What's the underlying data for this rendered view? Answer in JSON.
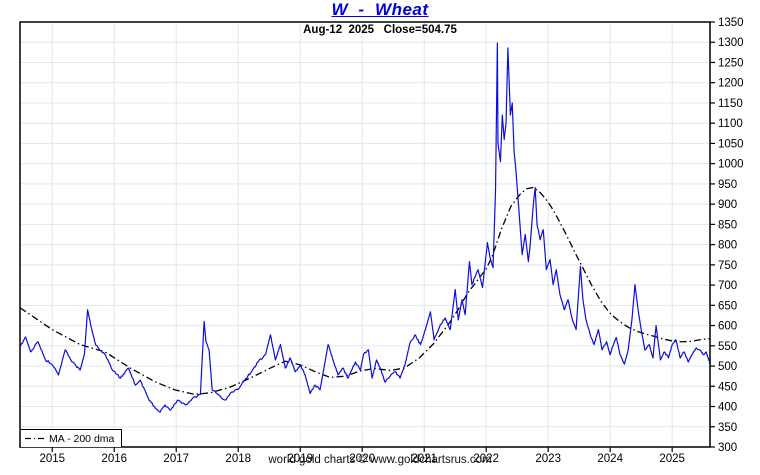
{
  "header": {
    "title": "W  -  Wheat",
    "subtitle": "Aug-12  2025   Close=504.75"
  },
  "legend": {
    "ma_label": "MA - 200 dma"
  },
  "footer": {
    "credit": "world gold charts © www.goldchartsrus.com"
  },
  "chart_data": {
    "type": "line",
    "title": "W - Wheat",
    "as_of_date": "Aug-12 2025",
    "close": 504.75,
    "xlabel": "",
    "ylabel": "",
    "x_range": [
      2014.48,
      2025.61
    ],
    "y_range": [
      300,
      1350
    ],
    "x_ticks": [
      2015,
      2016,
      2017,
      2018,
      2019,
      2020,
      2021,
      2022,
      2023,
      2024,
      2025
    ],
    "y_ticks": [
      300,
      350,
      400,
      450,
      500,
      550,
      600,
      650,
      700,
      750,
      800,
      850,
      900,
      950,
      1000,
      1050,
      1100,
      1150,
      1200,
      1250,
      1300,
      1350
    ],
    "grid": true,
    "legend_position": "bottom-left",
    "colors": {
      "price": "#0d0de0",
      "ma": "#000000",
      "grid": "#dde8f4",
      "frame": "#000000",
      "title": "#0000e0"
    },
    "series": [
      {
        "name": "W - Wheat price",
        "style": "solid",
        "color_key": "price",
        "points": [
          [
            2014.48,
            547
          ],
          [
            2014.57,
            572
          ],
          [
            2014.65,
            535
          ],
          [
            2014.77,
            560
          ],
          [
            2014.89,
            515
          ],
          [
            2015.0,
            503
          ],
          [
            2015.1,
            478
          ],
          [
            2015.21,
            540
          ],
          [
            2015.32,
            510
          ],
          [
            2015.45,
            490
          ],
          [
            2015.52,
            530
          ],
          [
            2015.57,
            639
          ],
          [
            2015.63,
            595
          ],
          [
            2015.7,
            552
          ],
          [
            2015.86,
            527
          ],
          [
            2015.97,
            490
          ],
          [
            2016.1,
            470
          ],
          [
            2016.23,
            495
          ],
          [
            2016.34,
            453
          ],
          [
            2016.42,
            465
          ],
          [
            2016.55,
            420
          ],
          [
            2016.66,
            396
          ],
          [
            2016.74,
            386
          ],
          [
            2016.82,
            404
          ],
          [
            2016.9,
            391
          ],
          [
            2017.03,
            416
          ],
          [
            2017.15,
            404
          ],
          [
            2017.26,
            420
          ],
          [
            2017.39,
            430
          ],
          [
            2017.45,
            610
          ],
          [
            2017.48,
            560
          ],
          [
            2017.53,
            540
          ],
          [
            2017.58,
            441
          ],
          [
            2017.68,
            429
          ],
          [
            2017.79,
            416
          ],
          [
            2017.9,
            436
          ],
          [
            2018.02,
            446
          ],
          [
            2018.11,
            466
          ],
          [
            2018.23,
            490
          ],
          [
            2018.32,
            510
          ],
          [
            2018.44,
            528
          ],
          [
            2018.52,
            577
          ],
          [
            2018.6,
            515
          ],
          [
            2018.68,
            553
          ],
          [
            2018.76,
            495
          ],
          [
            2018.84,
            520
          ],
          [
            2018.92,
            486
          ],
          [
            2019.0,
            503
          ],
          [
            2019.08,
            478
          ],
          [
            2019.16,
            432
          ],
          [
            2019.24,
            453
          ],
          [
            2019.32,
            441
          ],
          [
            2019.45,
            553
          ],
          [
            2019.53,
            515
          ],
          [
            2019.61,
            478
          ],
          [
            2019.69,
            495
          ],
          [
            2019.77,
            470
          ],
          [
            2019.89,
            510
          ],
          [
            2019.97,
            490
          ],
          [
            2020.02,
            528
          ],
          [
            2020.1,
            540
          ],
          [
            2020.16,
            470
          ],
          [
            2020.23,
            515
          ],
          [
            2020.29,
            495
          ],
          [
            2020.37,
            460
          ],
          [
            2020.45,
            475
          ],
          [
            2020.53,
            486
          ],
          [
            2020.61,
            470
          ],
          [
            2020.69,
            503
          ],
          [
            2020.77,
            557
          ],
          [
            2020.85,
            577
          ],
          [
            2020.94,
            553
          ],
          [
            2021.02,
            590
          ],
          [
            2021.1,
            634
          ],
          [
            2021.16,
            565
          ],
          [
            2021.26,
            602
          ],
          [
            2021.34,
            619
          ],
          [
            2021.42,
            590
          ],
          [
            2021.5,
            689
          ],
          [
            2021.55,
            614
          ],
          [
            2021.61,
            664
          ],
          [
            2021.66,
            627
          ],
          [
            2021.73,
            758
          ],
          [
            2021.77,
            701
          ],
          [
            2021.87,
            738
          ],
          [
            2021.94,
            694
          ],
          [
            2022.02,
            805
          ],
          [
            2022.06,
            770
          ],
          [
            2022.11,
            743
          ],
          [
            2022.15,
            930
          ],
          [
            2022.18,
            1298
          ],
          [
            2022.19,
            1050
          ],
          [
            2022.23,
            1005
          ],
          [
            2022.26,
            1120
          ],
          [
            2022.29,
            1060
          ],
          [
            2022.32,
            1100
          ],
          [
            2022.35,
            1286
          ],
          [
            2022.39,
            1120
          ],
          [
            2022.42,
            1150
          ],
          [
            2022.45,
            1030
          ],
          [
            2022.48,
            983
          ],
          [
            2022.53,
            880
          ],
          [
            2022.58,
            775
          ],
          [
            2022.63,
            825
          ],
          [
            2022.68,
            758
          ],
          [
            2022.71,
            800
          ],
          [
            2022.76,
            899
          ],
          [
            2022.79,
            941
          ],
          [
            2022.82,
            850
          ],
          [
            2022.87,
            812
          ],
          [
            2022.92,
            837
          ],
          [
            2022.97,
            738
          ],
          [
            2023.03,
            763
          ],
          [
            2023.08,
            701
          ],
          [
            2023.13,
            738
          ],
          [
            2023.19,
            676
          ],
          [
            2023.26,
            639
          ],
          [
            2023.32,
            664
          ],
          [
            2023.39,
            614
          ],
          [
            2023.45,
            590
          ],
          [
            2023.52,
            746
          ],
          [
            2023.56,
            664
          ],
          [
            2023.61,
            614
          ],
          [
            2023.68,
            577
          ],
          [
            2023.74,
            553
          ],
          [
            2023.81,
            590
          ],
          [
            2023.87,
            540
          ],
          [
            2023.94,
            560
          ],
          [
            2024.0,
            528
          ],
          [
            2024.03,
            545
          ],
          [
            2024.1,
            570
          ],
          [
            2024.16,
            528
          ],
          [
            2024.23,
            505
          ],
          [
            2024.29,
            540
          ],
          [
            2024.35,
            614
          ],
          [
            2024.4,
            701
          ],
          [
            2024.45,
            639
          ],
          [
            2024.5,
            590
          ],
          [
            2024.56,
            540
          ],
          [
            2024.63,
            553
          ],
          [
            2024.69,
            520
          ],
          [
            2024.74,
            600
          ],
          [
            2024.81,
            515
          ],
          [
            2024.87,
            535
          ],
          [
            2024.94,
            520
          ],
          [
            2025.0,
            553
          ],
          [
            2025.06,
            565
          ],
          [
            2025.13,
            520
          ],
          [
            2025.19,
            535
          ],
          [
            2025.26,
            510
          ],
          [
            2025.32,
            528
          ],
          [
            2025.39,
            545
          ],
          [
            2025.45,
            540
          ],
          [
            2025.5,
            528
          ],
          [
            2025.55,
            535
          ],
          [
            2025.61,
            504.75
          ]
        ]
      },
      {
        "name": "MA - 200 dma",
        "style": "dashdot",
        "color_key": "ma",
        "points": [
          [
            2014.48,
            644
          ],
          [
            2015.0,
            590
          ],
          [
            2015.45,
            553
          ],
          [
            2015.85,
            535
          ],
          [
            2016.26,
            495
          ],
          [
            2016.66,
            461
          ],
          [
            2016.98,
            441
          ],
          [
            2017.3,
            430
          ],
          [
            2017.55,
            434
          ],
          [
            2017.87,
            448
          ],
          [
            2018.19,
            470
          ],
          [
            2018.52,
            495
          ],
          [
            2018.76,
            512
          ],
          [
            2019.0,
            503
          ],
          [
            2019.24,
            486
          ],
          [
            2019.48,
            472
          ],
          [
            2019.73,
            475
          ],
          [
            2019.97,
            488
          ],
          [
            2020.2,
            494
          ],
          [
            2020.45,
            489
          ],
          [
            2020.68,
            495
          ],
          [
            2020.92,
            520
          ],
          [
            2021.15,
            555
          ],
          [
            2021.4,
            605
          ],
          [
            2021.55,
            640
          ],
          [
            2021.7,
            680
          ],
          [
            2021.85,
            710
          ],
          [
            2022.0,
            740
          ],
          [
            2022.1,
            772
          ],
          [
            2022.25,
            840
          ],
          [
            2022.4,
            895
          ],
          [
            2022.55,
            925
          ],
          [
            2022.65,
            938
          ],
          [
            2022.75,
            941
          ],
          [
            2022.85,
            932
          ],
          [
            2022.95,
            915
          ],
          [
            2023.05,
            893
          ],
          [
            2023.15,
            866
          ],
          [
            2023.3,
            822
          ],
          [
            2023.45,
            775
          ],
          [
            2023.6,
            730
          ],
          [
            2023.7,
            700
          ],
          [
            2023.85,
            660
          ],
          [
            2024.0,
            630
          ],
          [
            2024.15,
            610
          ],
          [
            2024.3,
            595
          ],
          [
            2024.45,
            585
          ],
          [
            2024.6,
            578
          ],
          [
            2024.7,
            574
          ],
          [
            2024.85,
            567
          ],
          [
            2025.0,
            562
          ],
          [
            2025.15,
            560
          ],
          [
            2025.3,
            561
          ],
          [
            2025.45,
            565
          ],
          [
            2025.61,
            568
          ]
        ]
      }
    ]
  }
}
